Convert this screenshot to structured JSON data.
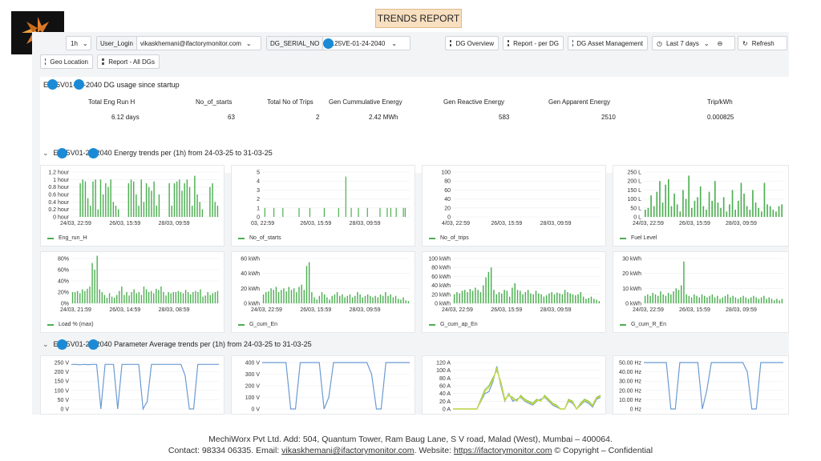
{
  "report_title": "TRENDS REPORT",
  "toolbar": {
    "interval": "1h",
    "user_label": "User_Login",
    "user_value": "vikaskhemani@ifactorymonitor.com",
    "serial_label": "DG_SERIAL_NO",
    "serial_value": "E125VE-01-24-2040",
    "dg_overview": "DG Overview",
    "report_per_dg": "Report - per DG",
    "dg_asset_mgmt": "DG Asset Management",
    "time_range": "Last 7 days",
    "refresh": "Refresh",
    "geo_location": "Geo Location",
    "report_all": "Report - All DGs"
  },
  "summary": {
    "title": "E125V01-24-2040 DG usage since startup",
    "columns": [
      {
        "header": "Total Eng Run H",
        "value": "6.12 days"
      },
      {
        "header": "No_of_starts",
        "value": "63"
      },
      {
        "header": "Total No of Trips",
        "value": "2"
      },
      {
        "header": "Gen Cummulative Energy",
        "value": "2.42 MWh"
      },
      {
        "header": "Gen Reactive Energy",
        "value": "583"
      },
      {
        "header": "Gen Apparent Energy",
        "value": "2510"
      },
      {
        "header": "Trip/kWh",
        "value": "0.000825"
      }
    ]
  },
  "energy_section": {
    "title": "E125V01-24-2040 Energy trends per (1h) from 24-03-25 to 31-03-25"
  },
  "param_section": {
    "title": "E125V01-24-2040 Parameter Average trends per (1h) from 24-03-25 to 31-03-25"
  },
  "colors": {
    "bar": "#4caf50",
    "line_blue": "#6b9bd2",
    "line_green": "#8bc34a",
    "line_yellow": "#cddc39"
  },
  "chart_data": [
    {
      "type": "bar",
      "legend": "Eng_run_H",
      "yticks": [
        "1.2 hour",
        "1 hour",
        "0.8 hour",
        "0.6 hour",
        "0.4 hour",
        "0.2 hour",
        "0 hour"
      ],
      "ylim": [
        0,
        1.2
      ],
      "xticks": [
        "24/03, 22:59",
        "26/03, 15:59",
        "28/03, 09:59"
      ],
      "values": [
        0,
        0,
        0,
        0.9,
        1,
        0.95,
        0.5,
        0.3,
        0.95,
        1,
        0.2,
        1,
        0.6,
        0.9,
        0.8,
        1,
        0.4,
        0.3,
        0.2,
        0,
        0,
        0,
        0.9,
        1,
        0.95,
        0.6,
        0.3,
        1,
        0.4,
        0.9,
        0.8,
        0.7,
        0.95,
        0.3,
        0.6,
        0,
        0,
        0,
        0.9,
        0.3,
        0.9,
        0.95,
        1,
        0.7,
        0.9,
        1,
        0.8,
        0.3,
        1.1,
        0.6,
        0.4,
        0.2,
        0,
        0,
        0.8,
        0.9,
        0.4,
        0.3
      ]
    },
    {
      "type": "bar",
      "legend": "No_of_starts",
      "yticks": [
        "5",
        "4",
        "3",
        "2",
        "1",
        "0"
      ],
      "ylim": [
        0,
        5
      ],
      "xticks": [
        "03, 22:59",
        "26/03, 15:59",
        "28/03, 09:59"
      ],
      "values": [
        0,
        1,
        0,
        0,
        0,
        0,
        1,
        0,
        0,
        0,
        0,
        1,
        0,
        0,
        0,
        0,
        0,
        0,
        0,
        0,
        1,
        0,
        0,
        0,
        0,
        0,
        1,
        0,
        0,
        0,
        0,
        0,
        0,
        0,
        1,
        0,
        0,
        0,
        0,
        0,
        0,
        0,
        1,
        0,
        0,
        0,
        4.5,
        0,
        0,
        1,
        0,
        0,
        0,
        1,
        0,
        0,
        0,
        0,
        1,
        0,
        0,
        0,
        0,
        0,
        0,
        1,
        0,
        0,
        0,
        1,
        0,
        1,
        0,
        0,
        1,
        0,
        0,
        0,
        1,
        1,
        0,
        0
      ]
    },
    {
      "type": "bar",
      "legend": "No_of_trips",
      "yticks": [
        "100",
        "80",
        "60",
        "40",
        "20",
        "0"
      ],
      "ylim": [
        0,
        100
      ],
      "xticks": [
        "4/03, 22:59",
        "26/03, 15:59",
        "28/03, 09:59"
      ],
      "values": [
        0,
        0,
        0,
        0,
        0,
        0,
        0,
        0,
        0,
        0,
        0,
        0,
        0,
        0,
        0,
        0,
        0,
        0,
        0,
        0,
        0,
        0,
        0,
        0,
        0,
        0,
        0,
        0,
        0,
        0,
        0,
        0,
        0,
        0,
        0,
        0,
        0,
        0,
        0,
        0,
        0
      ]
    },
    {
      "type": "bar",
      "legend": "Fuel Level",
      "yticks": [
        "250 L",
        "200 L",
        "150 L",
        "100 L",
        "50 L",
        "0 L"
      ],
      "ylim": [
        0,
        250
      ],
      "xticks": [
        "24/03, 22:59",
        "26/03, 15:59",
        "28/03, 09:59"
      ],
      "values": [
        40,
        50,
        120,
        60,
        140,
        200,
        80,
        180,
        210,
        60,
        130,
        70,
        30,
        150,
        100,
        230,
        50,
        90,
        110,
        170,
        60,
        40,
        140,
        90,
        200,
        80,
        50,
        110,
        30,
        70,
        150,
        40,
        90,
        190,
        130,
        60,
        40,
        150,
        80,
        50,
        30,
        190,
        70,
        60,
        40,
        30,
        60,
        70
      ]
    },
    {
      "type": "bar",
      "legend": "Load % (max)",
      "yticks": [
        "80%",
        "60%",
        "40%",
        "20%",
        "0%"
      ],
      "ylim": [
        0,
        80
      ],
      "xticks": [
        "24/03, 21:59",
        "26/03, 14:59",
        "28/03, 08:59"
      ],
      "values": [
        20,
        20,
        22,
        18,
        25,
        22,
        26,
        30,
        72,
        60,
        85,
        25,
        20,
        15,
        10,
        18,
        12,
        10,
        15,
        22,
        30,
        15,
        20,
        14,
        20,
        25,
        18,
        20,
        15,
        30,
        25,
        20,
        22,
        18,
        26,
        24,
        30,
        20,
        14,
        20,
        18,
        20,
        20,
        22,
        20,
        18,
        24,
        20,
        16,
        20,
        22,
        20,
        25,
        12,
        14,
        20,
        15,
        18,
        20,
        22
      ]
    },
    {
      "type": "bar",
      "legend": "G_cum_En",
      "yticks": [
        "60 kWh",
        "40 kWh",
        "20 kWh",
        "0 kWh"
      ],
      "ylim": [
        0,
        60
      ],
      "xticks": [
        "24/03, 22:59",
        "26/03, 15:59",
        "28/03, 09:59"
      ],
      "values": [
        12,
        15,
        16,
        20,
        18,
        22,
        15,
        18,
        20,
        16,
        22,
        18,
        20,
        15,
        22,
        25,
        18,
        50,
        55,
        15,
        8,
        5,
        10,
        15,
        12,
        8,
        5,
        10,
        12,
        15,
        10,
        12,
        8,
        10,
        12,
        8,
        10,
        15,
        12,
        8,
        10,
        12,
        10,
        8,
        10,
        8,
        12,
        10,
        15,
        10,
        12,
        8,
        10,
        6,
        5,
        8,
        4,
        3
      ]
    },
    {
      "type": "bar",
      "legend": "G_cum_ap_En",
      "yticks": [
        "100 kWh",
        "80 kWh",
        "60 kWh",
        "40 kWh",
        "20 kWh",
        "0 kWh"
      ],
      "ylim": [
        0,
        100
      ],
      "xticks": [
        "24/03, 22:59",
        "26/03, 15:59",
        "28/03, 09:59"
      ],
      "values": [
        20,
        25,
        22,
        28,
        30,
        25,
        32,
        28,
        35,
        30,
        25,
        40,
        58,
        70,
        80,
        30,
        20,
        25,
        22,
        30,
        28,
        15,
        35,
        45,
        30,
        28,
        20,
        25,
        30,
        22,
        20,
        28,
        22,
        20,
        15,
        18,
        22,
        25,
        20,
        24,
        22,
        20,
        30,
        25,
        22,
        20,
        18,
        20,
        25,
        15,
        10,
        12,
        15,
        10,
        8,
        5
      ]
    },
    {
      "type": "bar",
      "legend": "G_cum_R_En",
      "yticks": [
        "30 kWh",
        "20 kWh",
        "10 kWh",
        "0 kWh"
      ],
      "ylim": [
        0,
        30
      ],
      "xticks": [
        "24/03, 22:59",
        "26/03, 15:59",
        "28/03, 09:59"
      ],
      "values": [
        5,
        6,
        5,
        7,
        6,
        5,
        8,
        6,
        5,
        7,
        6,
        8,
        10,
        9,
        12,
        28,
        6,
        5,
        4,
        6,
        5,
        4,
        6,
        5,
        4,
        5,
        6,
        4,
        5,
        3,
        4,
        5,
        6,
        4,
        5,
        4,
        3,
        4,
        5,
        4,
        3,
        4,
        5,
        4,
        3,
        4,
        5,
        3,
        4,
        3,
        2,
        3,
        2,
        3
      ]
    },
    {
      "type": "line",
      "yticks": [
        "250 V",
        "200 V",
        "150 V",
        "100 V",
        "50 V",
        "0 V"
      ],
      "ylim": [
        0,
        250
      ],
      "values": [
        240,
        240,
        238,
        240,
        239,
        240,
        240,
        0,
        240,
        240,
        240,
        0,
        240,
        240,
        240,
        240,
        240,
        0,
        40,
        240,
        240,
        240,
        240,
        240,
        240,
        240,
        240,
        180,
        0,
        0,
        240,
        240,
        240,
        240,
        240,
        240
      ]
    },
    {
      "type": "line",
      "yticks": [
        "400 V",
        "300 V",
        "200 V",
        "100 V",
        "0 V"
      ],
      "ylim": [
        0,
        400
      ],
      "values": [
        400,
        400,
        400,
        400,
        400,
        400,
        0,
        0,
        400,
        400,
        400,
        400,
        400,
        0,
        100,
        400,
        400,
        400,
        400,
        400,
        400,
        400,
        400,
        300,
        0,
        0,
        400,
        400,
        400,
        400,
        400,
        400
      ]
    },
    {
      "type": "multiline",
      "yticks": [
        "120 A",
        "100 A",
        "80 A",
        "60 A",
        "40 A",
        "20 A",
        "0 A"
      ],
      "ylim": [
        0,
        120
      ],
      "series": [
        {
          "color": "#6b9bd2",
          "values": [
            0,
            0,
            0,
            0,
            0,
            0,
            0,
            20,
            40,
            45,
            70,
            110,
            60,
            20,
            40,
            20,
            25,
            30,
            20,
            15,
            10,
            20,
            25,
            30,
            20,
            10,
            5,
            0,
            0,
            20,
            15,
            0,
            10,
            20,
            15,
            5,
            25,
            30
          ]
        },
        {
          "color": "#8bc34a",
          "values": [
            0,
            0,
            0,
            0,
            0,
            0,
            0,
            25,
            50,
            60,
            80,
            100,
            70,
            25,
            35,
            30,
            20,
            35,
            25,
            20,
            15,
            25,
            20,
            35,
            25,
            15,
            10,
            0,
            0,
            25,
            20,
            0,
            15,
            25,
            20,
            10,
            30,
            35
          ]
        },
        {
          "color": "#cddc39",
          "values": [
            0,
            0,
            0,
            0,
            0,
            0,
            0,
            22,
            45,
            55,
            75,
            105,
            65,
            22,
            38,
            25,
            22,
            32,
            22,
            18,
            12,
            22,
            22,
            32,
            22,
            12,
            8,
            0,
            0,
            22,
            18,
            0,
            12,
            22,
            18,
            8,
            28,
            32
          ]
        }
      ]
    },
    {
      "type": "line",
      "yticks": [
        "50.00 Hz",
        "40.00 Hz",
        "30.00 Hz",
        "20.00 Hz",
        "10.00 Hz",
        "0 Hz"
      ],
      "ylim": [
        0,
        50
      ],
      "values": [
        50,
        50,
        50,
        50,
        50,
        50,
        0,
        0,
        50,
        50,
        50,
        50,
        50,
        0,
        20,
        50,
        50,
        50,
        50,
        50,
        50,
        50,
        50,
        40,
        0,
        0,
        50,
        50,
        50,
        50,
        50,
        50
      ]
    }
  ],
  "footer": {
    "line1": "MechiWorx Pvt Ltd. Add: 504, Quantum Tower, Ram Baug Lane, S V road, Malad (West), Mumbai – 400064.",
    "contact_prefix": "Contact: 98334 06335. Email: ",
    "email": "vikaskhemani@ifactorymonitor.com",
    "website_prefix": ". Website: ",
    "website": "https://ifactorymonitor.com",
    "copyright": " © Copyright – Confidential"
  }
}
